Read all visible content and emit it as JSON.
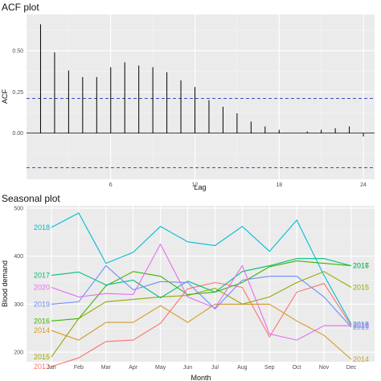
{
  "chart_data": [
    {
      "type": "bar",
      "title": "ACF plot",
      "xlabel": "Lag",
      "ylabel": "ACF",
      "xticks": [
        6,
        12,
        18,
        24
      ],
      "yticks": [
        "0.00",
        "0.25",
        "0.50"
      ],
      "ylim": [
        -0.28,
        0.72
      ],
      "xlim": [
        0,
        24.8
      ],
      "lags": [
        1,
        2,
        3,
        4,
        5,
        6,
        7,
        8,
        9,
        10,
        11,
        12,
        13,
        14,
        15,
        16,
        17,
        18,
        19,
        20,
        21,
        22,
        23,
        24
      ],
      "values": [
        0.66,
        0.49,
        0.38,
        0.34,
        0.34,
        0.4,
        0.43,
        0.41,
        0.4,
        0.37,
        0.32,
        0.28,
        0.2,
        0.16,
        0.12,
        0.07,
        0.04,
        0.02,
        0.0,
        0.01,
        0.02,
        0.03,
        0.04,
        -0.02
      ],
      "confidence_bounds": [
        0.21,
        -0.21
      ],
      "grid": true,
      "colors": {
        "bar": "#000000",
        "bound": "#3b4cc0",
        "panel": "#ebebeb"
      }
    },
    {
      "type": "line",
      "title": "Seasonal plot",
      "xlabel": "Month",
      "ylabel": "Blood demand",
      "categories": [
        "Jan",
        "Feb",
        "Mar",
        "Apr",
        "May",
        "Jun",
        "Jul",
        "Aug",
        "Sep",
        "Oct",
        "Nov",
        "Dec"
      ],
      "yticks": [
        "200",
        "300",
        "400",
        "500"
      ],
      "ylim": [
        180,
        505
      ],
      "grid": true,
      "series": [
        {
          "name": "2013",
          "color": "#f8766d",
          "values": [
            170,
            188,
            222,
            225,
            260,
            332,
            345,
            335,
            232,
            325,
            343,
            255
          ],
          "start_label": "2013",
          "end_label": "2013"
        },
        {
          "name": "2014",
          "color": "#d49b2a",
          "values": [
            245,
            225,
            262,
            262,
            297,
            262,
            300,
            300,
            300,
            265,
            235,
            185
          ],
          "start_label": "2014",
          "end_label": "2014"
        },
        {
          "name": "2015",
          "color": "#99a800",
          "values": [
            190,
            270,
            305,
            310,
            315,
            318,
            333,
            300,
            315,
            345,
            368,
            335
          ],
          "start_label": "2015",
          "end_label": "2015"
        },
        {
          "name": "2016",
          "color": "#39b600",
          "values": [
            265,
            270,
            338,
            368,
            358,
            320,
            325,
            345,
            378,
            390,
            385,
            380
          ],
          "start_label": "2016",
          "end_label": "2016"
        },
        {
          "name": "2017",
          "color": "#00bf7d",
          "values": [
            360,
            367,
            340,
            350,
            313,
            348,
            325,
            368,
            380,
            395,
            395,
            380
          ],
          "start_label": "2017",
          "end_label": "2017"
        },
        {
          "name": "2018",
          "color": "#00bcd8",
          "values": [
            460,
            490,
            385,
            408,
            462,
            430,
            422,
            462,
            410,
            475,
            360,
            258
          ],
          "start_label": "2018",
          "end_label": "2018"
        },
        {
          "name": "2019",
          "color": "#6f8bff",
          "values": [
            300,
            305,
            380,
            330,
            347,
            345,
            290,
            350,
            358,
            358,
            315,
            252
          ],
          "start_label": "2019",
          "end_label": "2019"
        },
        {
          "name": "2020",
          "color": "#e76bf3",
          "values": [
            335,
            315,
            322,
            320,
            425,
            315,
            292,
            380,
            238,
            225,
            255,
            255
          ],
          "start_label": "2020",
          "end_label": "2020"
        }
      ]
    }
  ]
}
